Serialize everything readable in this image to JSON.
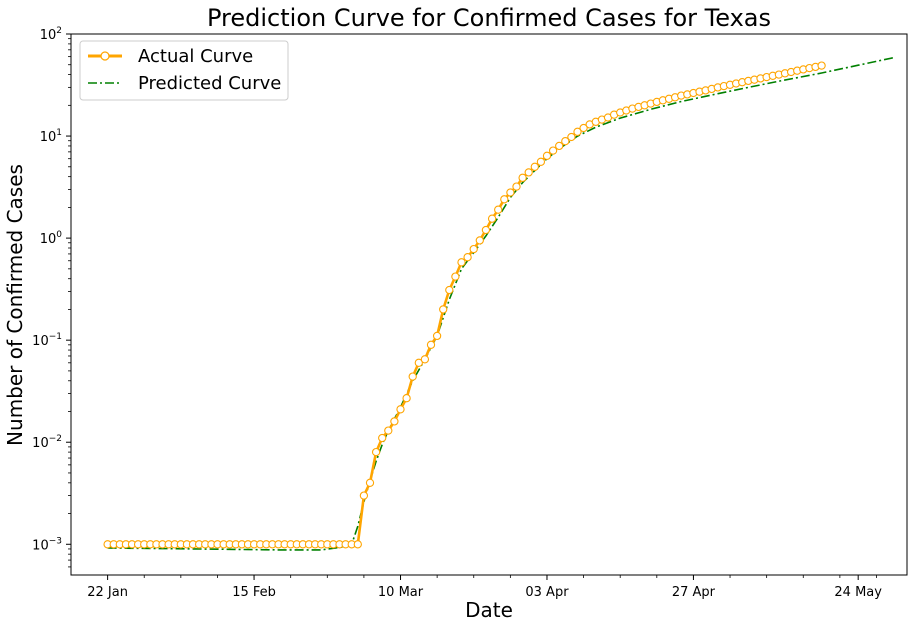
{
  "chart_data": {
    "type": "line",
    "title": "Prediction Curve for Confirmed Cases for Texas",
    "xlabel": "Date",
    "ylabel": "Number of Confirmed Cases",
    "yscale": "log",
    "ylim": [
      0.0005,
      100
    ],
    "xlim": [
      "2020-01-16",
      "2020-06-01"
    ],
    "x_ticks": [
      {
        "date": "2020-01-22",
        "label": "22 Jan"
      },
      {
        "date": "2020-02-15",
        "label": "15 Feb"
      },
      {
        "date": "2020-03-10",
        "label": "10 Mar"
      },
      {
        "date": "2020-04-03",
        "label": "03 Apr"
      },
      {
        "date": "2020-04-27",
        "label": "27 Apr"
      },
      {
        "date": "2020-05-24",
        "label": "24 May"
      }
    ],
    "y_ticks": [
      {
        "value": 0.001,
        "base": "10",
        "exp": "−3"
      },
      {
        "value": 0.01,
        "base": "10",
        "exp": "−2"
      },
      {
        "value": 0.1,
        "base": "10",
        "exp": "−1"
      },
      {
        "value": 1,
        "base": "10",
        "exp": "0"
      },
      {
        "value": 10,
        "base": "10",
        "exp": "1"
      },
      {
        "value": 100,
        "base": "10",
        "exp": "2"
      }
    ],
    "legend_position": "top-left",
    "grid": false,
    "series": [
      {
        "name": "Actual Curve",
        "color": "#ffa500",
        "marker": "circle",
        "points": [
          [
            "2020-01-22",
            0.001
          ],
          [
            "2020-01-23",
            0.001
          ],
          [
            "2020-01-24",
            0.001
          ],
          [
            "2020-01-25",
            0.001
          ],
          [
            "2020-01-26",
            0.001
          ],
          [
            "2020-01-27",
            0.001
          ],
          [
            "2020-01-28",
            0.001
          ],
          [
            "2020-01-29",
            0.001
          ],
          [
            "2020-01-30",
            0.001
          ],
          [
            "2020-01-31",
            0.001
          ],
          [
            "2020-02-01",
            0.001
          ],
          [
            "2020-02-02",
            0.001
          ],
          [
            "2020-02-03",
            0.001
          ],
          [
            "2020-02-04",
            0.001
          ],
          [
            "2020-02-05",
            0.001
          ],
          [
            "2020-02-06",
            0.001
          ],
          [
            "2020-02-07",
            0.001
          ],
          [
            "2020-02-08",
            0.001
          ],
          [
            "2020-02-09",
            0.001
          ],
          [
            "2020-02-10",
            0.001
          ],
          [
            "2020-02-11",
            0.001
          ],
          [
            "2020-02-12",
            0.001
          ],
          [
            "2020-02-13",
            0.001
          ],
          [
            "2020-02-14",
            0.001
          ],
          [
            "2020-02-15",
            0.001
          ],
          [
            "2020-02-16",
            0.001
          ],
          [
            "2020-02-17",
            0.001
          ],
          [
            "2020-02-18",
            0.001
          ],
          [
            "2020-02-19",
            0.001
          ],
          [
            "2020-02-20",
            0.001
          ],
          [
            "2020-02-21",
            0.001
          ],
          [
            "2020-02-22",
            0.001
          ],
          [
            "2020-02-23",
            0.001
          ],
          [
            "2020-02-24",
            0.001
          ],
          [
            "2020-02-25",
            0.001
          ],
          [
            "2020-02-26",
            0.001
          ],
          [
            "2020-02-27",
            0.001
          ],
          [
            "2020-02-28",
            0.001
          ],
          [
            "2020-02-29",
            0.001
          ],
          [
            "2020-03-01",
            0.001
          ],
          [
            "2020-03-02",
            0.001
          ],
          [
            "2020-03-03",
            0.001
          ],
          [
            "2020-03-04",
            0.003
          ],
          [
            "2020-03-05",
            0.004
          ],
          [
            "2020-03-06",
            0.008
          ],
          [
            "2020-03-07",
            0.011
          ],
          [
            "2020-03-08",
            0.013
          ],
          [
            "2020-03-09",
            0.016
          ],
          [
            "2020-03-10",
            0.021
          ],
          [
            "2020-03-11",
            0.027
          ],
          [
            "2020-03-12",
            0.044
          ],
          [
            "2020-03-13",
            0.06
          ],
          [
            "2020-03-14",
            0.065
          ],
          [
            "2020-03-15",
            0.09
          ],
          [
            "2020-03-16",
            0.11
          ],
          [
            "2020-03-17",
            0.2
          ],
          [
            "2020-03-18",
            0.31
          ],
          [
            "2020-03-19",
            0.42
          ],
          [
            "2020-03-20",
            0.58
          ],
          [
            "2020-03-21",
            0.65
          ],
          [
            "2020-03-22",
            0.78
          ],
          [
            "2020-03-23",
            0.95
          ],
          [
            "2020-03-24",
            1.2
          ],
          [
            "2020-03-25",
            1.55
          ],
          [
            "2020-03-26",
            1.9
          ],
          [
            "2020-03-27",
            2.4
          ],
          [
            "2020-03-28",
            2.8
          ],
          [
            "2020-03-29",
            3.2
          ],
          [
            "2020-03-30",
            3.9
          ],
          [
            "2020-03-31",
            4.4
          ],
          [
            "2020-04-01",
            5.0
          ],
          [
            "2020-04-02",
            5.6
          ],
          [
            "2020-04-03",
            6.4
          ],
          [
            "2020-04-04",
            7.2
          ],
          [
            "2020-04-05",
            8.0
          ],
          [
            "2020-04-06",
            8.9
          ],
          [
            "2020-04-07",
            9.8
          ],
          [
            "2020-04-08",
            11.0
          ],
          [
            "2020-04-09",
            12.0
          ],
          [
            "2020-04-10",
            13.0
          ],
          [
            "2020-04-11",
            13.8
          ],
          [
            "2020-04-12",
            14.5
          ],
          [
            "2020-04-13",
            15.2
          ],
          [
            "2020-04-14",
            16.2
          ],
          [
            "2020-04-15",
            17.0
          ],
          [
            "2020-04-16",
            17.8
          ],
          [
            "2020-04-17",
            18.6
          ],
          [
            "2020-04-18",
            19.3
          ],
          [
            "2020-04-19",
            20.0
          ],
          [
            "2020-04-20",
            20.8
          ],
          [
            "2020-04-21",
            21.6
          ],
          [
            "2020-04-22",
            22.4
          ],
          [
            "2020-04-23",
            23.2
          ],
          [
            "2020-04-24",
            24.0
          ],
          [
            "2020-04-25",
            24.9
          ],
          [
            "2020-04-26",
            25.6
          ],
          [
            "2020-04-27",
            26.4
          ],
          [
            "2020-04-28",
            27.2
          ],
          [
            "2020-04-29",
            28.0
          ],
          [
            "2020-04-30",
            29.0
          ],
          [
            "2020-05-01",
            30.0
          ],
          [
            "2020-05-02",
            30.9
          ],
          [
            "2020-05-03",
            31.8
          ],
          [
            "2020-05-04",
            32.7
          ],
          [
            "2020-05-05",
            33.7
          ],
          [
            "2020-05-06",
            34.7
          ],
          [
            "2020-05-07",
            35.7
          ],
          [
            "2020-05-08",
            36.7
          ],
          [
            "2020-05-09",
            37.8
          ],
          [
            "2020-05-10",
            38.9
          ],
          [
            "2020-05-11",
            40.0
          ],
          [
            "2020-05-12",
            41.2
          ],
          [
            "2020-05-13",
            42.4
          ],
          [
            "2020-05-14",
            43.7
          ],
          [
            "2020-05-15",
            45.0
          ],
          [
            "2020-05-16",
            46.3
          ],
          [
            "2020-05-17",
            47.6
          ],
          [
            "2020-05-18",
            49.0
          ]
        ]
      },
      {
        "name": "Predicted Curve",
        "color": "#008000",
        "style": "dash-dot",
        "points": [
          [
            "2020-01-22",
            0.00092
          ],
          [
            "2020-02-05",
            0.0009
          ],
          [
            "2020-02-19",
            0.00088
          ],
          [
            "2020-02-26",
            0.00088
          ],
          [
            "2020-03-01",
            0.00095
          ],
          [
            "2020-03-02",
            0.001
          ],
          [
            "2020-03-03",
            0.0015
          ],
          [
            "2020-03-04",
            0.0026
          ],
          [
            "2020-03-05",
            0.0042
          ],
          [
            "2020-03-06",
            0.0065
          ],
          [
            "2020-03-07",
            0.0095
          ],
          [
            "2020-03-08",
            0.013
          ],
          [
            "2020-03-10",
            0.022
          ],
          [
            "2020-03-12",
            0.04
          ],
          [
            "2020-03-14",
            0.065
          ],
          [
            "2020-03-16",
            0.11
          ],
          [
            "2020-03-18",
            0.25
          ],
          [
            "2020-03-20",
            0.5
          ],
          [
            "2020-03-22",
            0.72
          ],
          [
            "2020-03-24",
            1.05
          ],
          [
            "2020-03-26",
            1.6
          ],
          [
            "2020-03-28",
            2.5
          ],
          [
            "2020-03-30",
            3.5
          ],
          [
            "2020-04-01",
            4.6
          ],
          [
            "2020-04-03",
            6.0
          ],
          [
            "2020-04-05",
            7.5
          ],
          [
            "2020-04-08",
            10.0
          ],
          [
            "2020-04-11",
            12.2
          ],
          [
            "2020-04-15",
            15.0
          ],
          [
            "2020-04-20",
            18.3
          ],
          [
            "2020-04-25",
            21.8
          ],
          [
            "2020-05-01",
            26.0
          ],
          [
            "2020-05-06",
            30.0
          ],
          [
            "2020-05-11",
            34.5
          ],
          [
            "2020-05-18",
            41.5
          ],
          [
            "2020-05-24",
            49.5
          ],
          [
            "2020-05-27",
            54.0
          ],
          [
            "2020-05-30",
            59.0
          ]
        ]
      }
    ]
  }
}
